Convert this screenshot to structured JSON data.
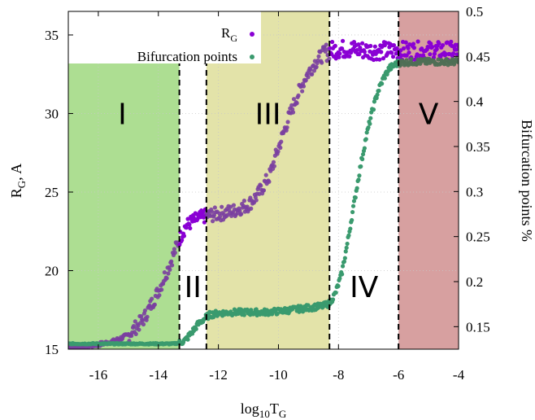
{
  "chart_data": {
    "type": "scatter",
    "xlabel": "log10TG",
    "xlabel_parts": {
      "pre": "log",
      "sub1": "10",
      "main": "T",
      "sub2": "G"
    },
    "ylabel_left": "RG, A",
    "ylabel_left_parts": {
      "main": "R",
      "sub": "G",
      "rest": ", A"
    },
    "ylabel_right": "Bifurcation points %",
    "xlim": [
      -17,
      -4
    ],
    "ylim_left": [
      15,
      36.5
    ],
    "ylim_right": [
      0.125,
      0.5
    ],
    "x_ticks": [
      "-16",
      "-14",
      "-12",
      "-10",
      "-8",
      "-6",
      "-4"
    ],
    "y_left_ticks": [
      "15",
      "20",
      "25",
      "30",
      "35"
    ],
    "y_right_ticks": [
      "0.15",
      "0.2",
      "0.25",
      "0.3",
      "0.35",
      "0.4",
      "0.45",
      "0.5"
    ],
    "grid": true,
    "legend_placement": "top-left",
    "regions": [
      {
        "label": "I",
        "x0": -17,
        "x1": -13.3,
        "color": "#92d36e",
        "opacity": 0.75,
        "label_x": -15.2,
        "label_y": 30
      },
      {
        "label": "II",
        "x0": -13.3,
        "x1": -12.4,
        "color": "#ffffff",
        "opacity": 0.0,
        "label_x": -12.85,
        "label_y": 19
      },
      {
        "label": "III",
        "x0": -12.4,
        "x1": -8.3,
        "color": "#dede9a",
        "opacity": 0.85,
        "label_x": -10.35,
        "label_y": 30
      },
      {
        "label": "IV",
        "x0": -8.3,
        "x1": -6.0,
        "color": "#ffffff",
        "opacity": 0.0,
        "label_x": -7.15,
        "label_y": 19
      },
      {
        "label": "V",
        "x0": -6.0,
        "x1": -4,
        "color": "#c98080",
        "opacity": 0.75,
        "label_x": -5.0,
        "label_y": 30
      }
    ],
    "boundaries": [
      -13.3,
      -12.4,
      -8.3,
      -6.0
    ],
    "series": [
      {
        "name": "RG",
        "name_parts": {
          "main": "R",
          "sub": "G"
        },
        "axis": "left",
        "color": "#8a00d4",
        "x": [
          -17,
          -16.5,
          -16,
          -15.5,
          -15,
          -14.5,
          -14,
          -13.6,
          -13.3,
          -13.1,
          -12.9,
          -12.7,
          -12.4,
          -12,
          -11.5,
          -11,
          -10.7,
          -10.3,
          -10,
          -9.7,
          -9.4,
          -9.1,
          -8.8,
          -8.5,
          -8.3,
          -8,
          -7.5,
          -7,
          -6.5,
          -6,
          -5.5,
          -5,
          -4.5,
          -4
        ],
        "y": [
          15.1,
          15.15,
          15.3,
          15.5,
          15.9,
          16.9,
          18.7,
          20.5,
          22.0,
          22.8,
          23.1,
          23.3,
          23.5,
          23.6,
          23.8,
          24.2,
          24.8,
          26.0,
          27.8,
          29.5,
          31.0,
          32.3,
          33.2,
          33.8,
          34.0,
          34.1,
          34.1,
          34.0,
          34.0,
          34.0,
          34.0,
          34.0,
          34.0,
          34.0
        ]
      },
      {
        "name": "Bifurcation points",
        "axis": "right",
        "color": "#3a9a6e",
        "x": [
          -17,
          -16,
          -15,
          -14,
          -13.5,
          -13.3,
          -13.1,
          -12.9,
          -12.7,
          -12.5,
          -12.3,
          -12,
          -11.5,
          -11,
          -10.5,
          -10,
          -9.5,
          -9,
          -8.5,
          -8.3,
          -8.1,
          -7.9,
          -7.7,
          -7.5,
          -7.3,
          -7.1,
          -6.9,
          -6.7,
          -6.5,
          -6.3,
          -6.0,
          -5.5,
          -5,
          -4.5,
          -4
        ],
        "y": [
          0.131,
          0.131,
          0.131,
          0.131,
          0.131,
          0.132,
          0.135,
          0.143,
          0.152,
          0.158,
          0.163,
          0.165,
          0.166,
          0.166,
          0.166,
          0.167,
          0.169,
          0.171,
          0.173,
          0.176,
          0.187,
          0.208,
          0.243,
          0.283,
          0.322,
          0.357,
          0.386,
          0.41,
          0.426,
          0.437,
          0.443,
          0.444,
          0.444,
          0.444,
          0.444
        ]
      }
    ]
  }
}
